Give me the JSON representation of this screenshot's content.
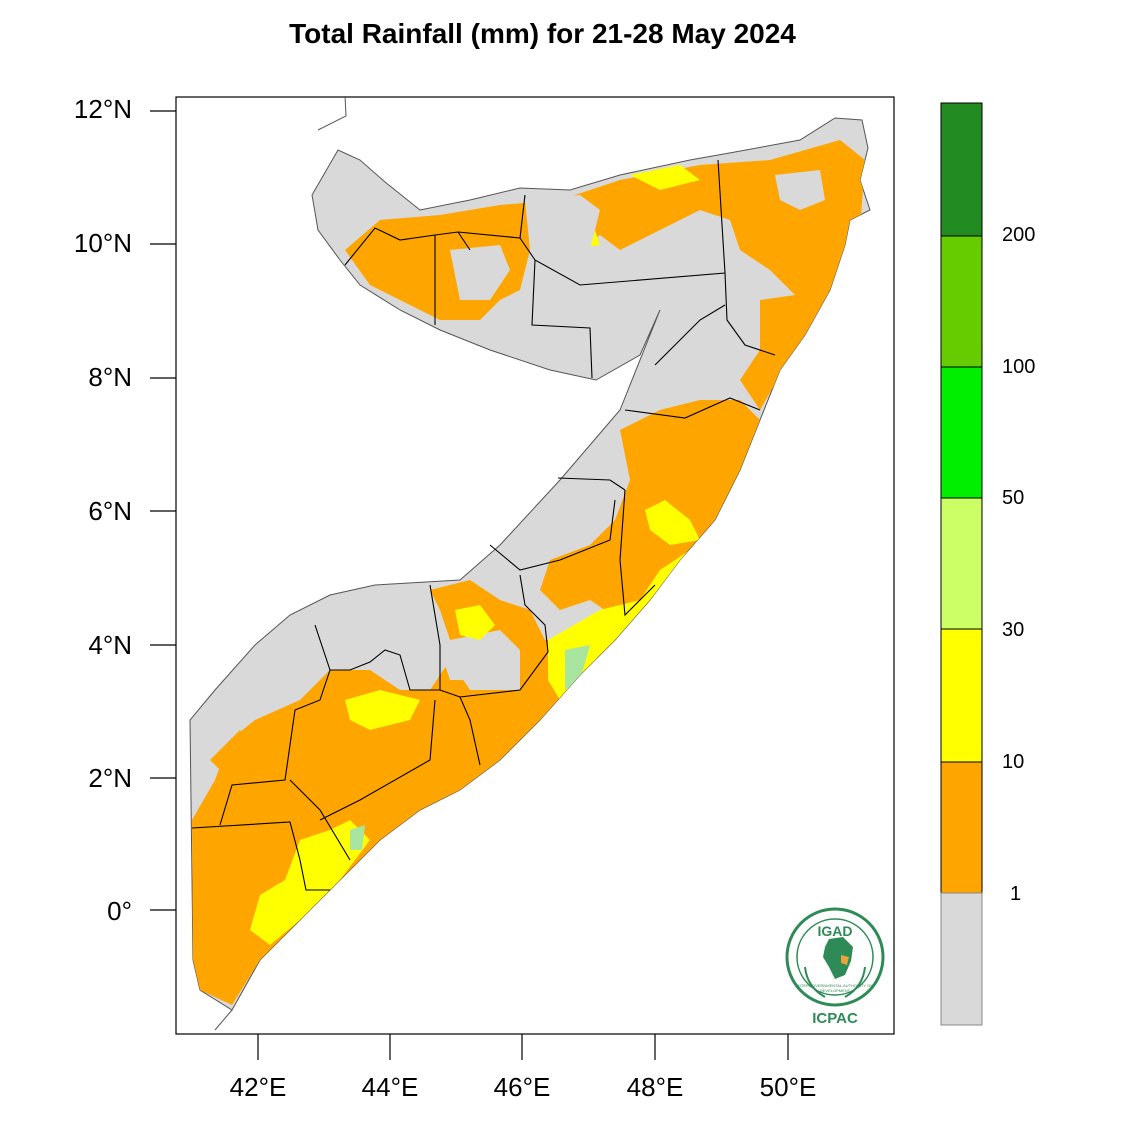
{
  "title": "Total Rainfall (mm) for 21-28 May 2024",
  "axes": {
    "y_ticks": [
      "12°N",
      "10°N",
      "8°N",
      "6°N",
      "4°N",
      "2°N",
      "0°"
    ],
    "x_ticks": [
      "42°E",
      "44°E",
      "46°E",
      "48°E",
      "50°E"
    ]
  },
  "legend": {
    "labels": [
      "200",
      "100",
      "50",
      "30",
      "10",
      "1"
    ],
    "colors": [
      "#228B22",
      "#66CC00",
      "#00EE00",
      "#CCFF66",
      "#FFFF00",
      "#FFA500",
      "#D9D9D9"
    ]
  },
  "colors": {
    "dry": "#D9D9D9",
    "orange": "#FFA500",
    "yellow": "#FFFF00",
    "lightgreen": "#CCFF66",
    "pale": "#A8E6A0"
  },
  "logo": {
    "top_text": "IGAD",
    "bottom_text": "ICPAC",
    "ring_text": "INTERGOVERNMENTAL AUTHORITY ON DEVELOPMENT"
  }
}
